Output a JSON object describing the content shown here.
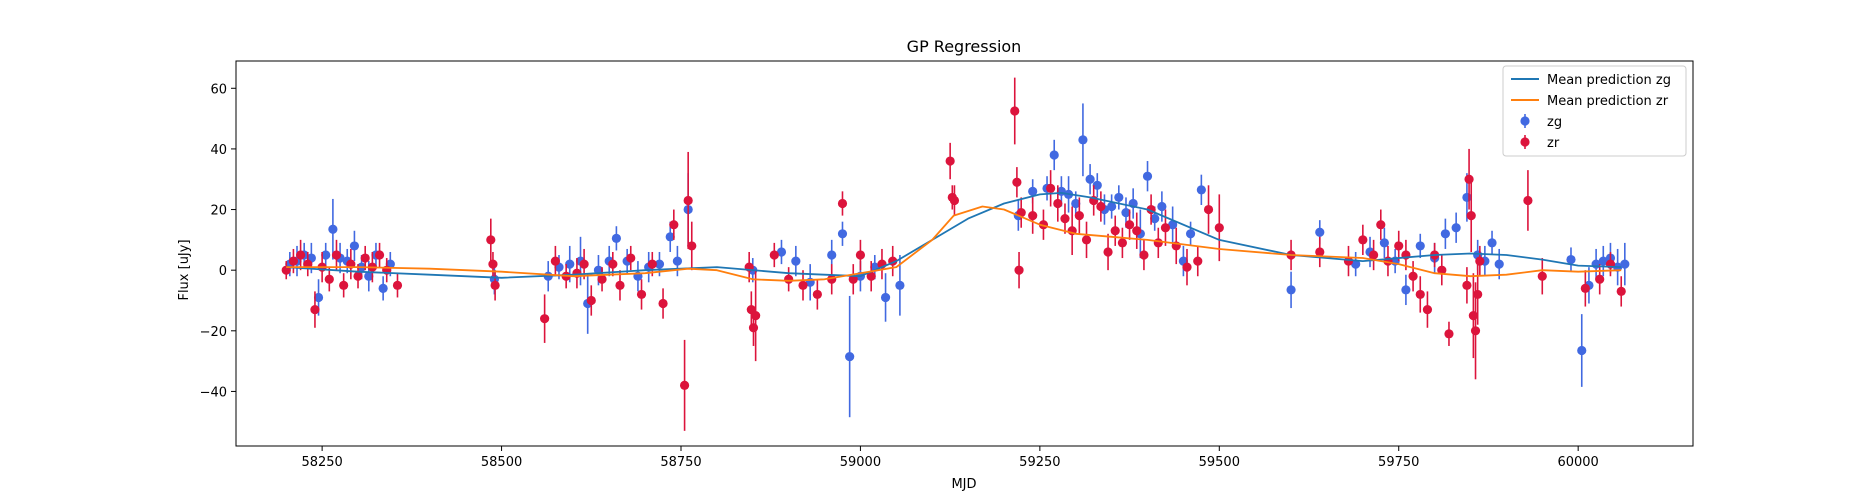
{
  "chart_data": {
    "type": "scatter",
    "title": "GP Regression",
    "xlabel": "MJD",
    "ylabel": "Flux [uJy]",
    "xlim": [
      58130,
      60160
    ],
    "ylim": [
      -58,
      69
    ],
    "xticks": [
      58250,
      58500,
      58750,
      59000,
      59250,
      59500,
      59750,
      60000
    ],
    "yticks": [
      -40,
      -20,
      0,
      20,
      40,
      60
    ],
    "grid": false,
    "legend_position": "top-right",
    "series": [
      {
        "name": "Mean prediction zg",
        "kind": "line",
        "color": "#1f77b4",
        "x": [
          58200,
          58300,
          58400,
          58500,
          58600,
          58700,
          58800,
          58900,
          59000,
          59050,
          59100,
          59150,
          59200,
          59250,
          59280,
          59320,
          59400,
          59500,
          59600,
          59700,
          59800,
          59850,
          59900,
          59950,
          60000,
          60060
        ],
        "y": [
          1,
          -0.5,
          -1.5,
          -2.5,
          -1.5,
          0,
          1,
          -1,
          -2,
          3,
          10,
          17,
          22,
          25,
          25.5,
          24,
          20,
          10,
          5,
          3,
          5,
          5.5,
          5,
          3.5,
          1.5,
          1
        ]
      },
      {
        "name": "Mean prediction zr",
        "kind": "line",
        "color": "#ff7f0e",
        "x": [
          58200,
          58300,
          58400,
          58500,
          58600,
          58700,
          58760,
          58800,
          58850,
          58900,
          58950,
          59000,
          59050,
          59100,
          59130,
          59170,
          59200,
          59250,
          59300,
          59350,
          59400,
          59500,
          59600,
          59700,
          59750,
          59800,
          59850,
          59900,
          59950,
          60000,
          60060
        ],
        "y": [
          1,
          1,
          0.5,
          -0.5,
          -2,
          -1,
          0.5,
          0,
          -3,
          -3.5,
          -3,
          -1,
          1,
          10,
          18,
          21,
          20,
          15,
          12,
          11,
          10,
          7,
          5,
          4,
          2,
          -1,
          -2,
          -1.5,
          0,
          -0.5,
          0
        ]
      },
      {
        "name": "zg",
        "kind": "errorbar",
        "color": "#4169e1",
        "x": [
          58205,
          58215,
          58225,
          58235,
          58245,
          58255,
          58265,
          58275,
          58285,
          58295,
          58305,
          58315,
          58325,
          58335,
          58345,
          58490,
          58565,
          58580,
          58595,
          58610,
          58620,
          58635,
          58650,
          58660,
          58675,
          58690,
          58705,
          58720,
          58735,
          58745,
          58760,
          58850,
          58890,
          58910,
          58930,
          58960,
          58975,
          58985,
          59000,
          59020,
          59035,
          59055,
          59220,
          59240,
          59260,
          59270,
          59280,
          59290,
          59300,
          59310,
          59320,
          59330,
          59340,
          59350,
          59360,
          59370,
          59380,
          59390,
          59400,
          59410,
          59420,
          59435,
          59450,
          59460,
          59475,
          59600,
          59640,
          59690,
          59710,
          59730,
          59745,
          59760,
          59780,
          59800,
          59815,
          59830,
          59845,
          59860,
          59870,
          59880,
          59890,
          59990,
          60005,
          60015,
          60025,
          60035,
          60045,
          60055,
          60065
        ],
        "y": [
          2,
          3,
          5,
          4,
          -9,
          5,
          13.5,
          4,
          3,
          8,
          1,
          -2,
          5,
          -6,
          2,
          -3,
          -2,
          1,
          2,
          3,
          -11,
          0,
          3,
          10.5,
          3,
          -2,
          1,
          2,
          11,
          3,
          20,
          0,
          6,
          3,
          -4,
          5,
          12,
          -28.5,
          -2,
          1,
          -9,
          -5,
          18,
          26,
          27,
          38,
          26,
          25,
          22,
          43,
          30,
          28,
          20,
          21,
          24,
          19,
          22,
          12,
          31,
          17,
          21,
          15,
          3,
          12,
          26.5,
          -6.5,
          12.5,
          2,
          6,
          9,
          3,
          -6.5,
          8,
          4,
          12,
          14,
          24,
          5,
          3,
          9,
          2,
          3.5,
          -26.5,
          -5,
          2,
          3,
          4,
          1,
          2
        ],
        "err": [
          4,
          5,
          4,
          5,
          6,
          4,
          10,
          5,
          4,
          5,
          4,
          5,
          4,
          4,
          4,
          5,
          5,
          4,
          6,
          8,
          10,
          5,
          5,
          4,
          4,
          5,
          5,
          4,
          5,
          5,
          12,
          4,
          4,
          5,
          6,
          5,
          4,
          20,
          5,
          4,
          8,
          10,
          5,
          4,
          4,
          5,
          5,
          6,
          4,
          12,
          5,
          4,
          5,
          4,
          4,
          5,
          5,
          8,
          5,
          4,
          5,
          6,
          5,
          4,
          5,
          6,
          4,
          4,
          5,
          5,
          4,
          5,
          4,
          5,
          5,
          5,
          8,
          5,
          5,
          4,
          5,
          4,
          12,
          6,
          5,
          5,
          5,
          6,
          7
        ]
      },
      {
        "name": "zr",
        "kind": "errorbar",
        "color": "#dc143c",
        "x": [
          58200,
          58210,
          58220,
          58230,
          58240,
          58250,
          58260,
          58270,
          58280,
          58290,
          58300,
          58310,
          58320,
          58330,
          58340,
          58355,
          58485,
          58488,
          58491,
          58560,
          58575,
          58590,
          58605,
          58615,
          58625,
          58640,
          58655,
          58665,
          58680,
          58695,
          58710,
          58725,
          58740,
          58755,
          58760,
          58765,
          58845,
          58848,
          58851,
          58854,
          58880,
          58900,
          58920,
          58940,
          58960,
          58975,
          58990,
          59000,
          59015,
          59030,
          59045,
          59125,
          59128,
          59131,
          59215,
          59218,
          59221,
          59224,
          59240,
          59255,
          59265,
          59275,
          59285,
          59295,
          59305,
          59315,
          59325,
          59335,
          59345,
          59355,
          59365,
          59375,
          59385,
          59395,
          59405,
          59415,
          59425,
          59440,
          59455,
          59470,
          59485,
          59500,
          59600,
          59640,
          59680,
          59700,
          59715,
          59725,
          59735,
          59750,
          59760,
          59770,
          59780,
          59790,
          59800,
          59810,
          59820,
          59845,
          59848,
          59851,
          59854,
          59857,
          59860,
          59863,
          59930,
          59950,
          60010,
          60030,
          60045,
          60060
        ],
        "y": [
          0,
          3,
          5,
          2,
          -13,
          1,
          -3,
          5,
          -5,
          2,
          -2,
          4,
          1,
          5,
          0,
          -5,
          10,
          2,
          -5,
          -16,
          3,
          -2,
          -1,
          2,
          -10,
          -3,
          2,
          -5,
          4,
          -8,
          2,
          -11,
          15,
          -38,
          23,
          8,
          1,
          -13,
          -19,
          -15,
          5,
          -3,
          -5,
          -8,
          -3,
          22,
          -3,
          5,
          -2,
          2,
          3,
          36,
          24,
          23,
          52.5,
          29,
          0,
          19,
          18,
          15,
          27,
          22,
          17,
          13,
          18,
          10,
          23,
          21,
          6,
          13,
          9,
          15,
          13,
          5,
          20,
          9,
          14,
          8,
          1,
          3,
          20,
          14,
          5,
          6,
          3,
          10,
          5,
          15,
          3,
          8,
          5,
          -2,
          -8,
          -13,
          5,
          0,
          -21,
          -5,
          30,
          18,
          -15,
          -20,
          -8,
          3,
          23,
          -2,
          -6,
          -3,
          2,
          -7
        ],
        "err": [
          3,
          4,
          5,
          4,
          6,
          5,
          4,
          5,
          4,
          5,
          4,
          4,
          5,
          4,
          4,
          4,
          7,
          4,
          5,
          8,
          5,
          4,
          5,
          5,
          5,
          4,
          4,
          5,
          4,
          5,
          4,
          5,
          5,
          15,
          16,
          8,
          5,
          6,
          6,
          15,
          4,
          4,
          5,
          5,
          5,
          4,
          5,
          5,
          5,
          5,
          5,
          6,
          4,
          5,
          11,
          5,
          6,
          5,
          6,
          5,
          6,
          6,
          5,
          8,
          6,
          6,
          5,
          5,
          6,
          5,
          5,
          5,
          6,
          5,
          5,
          5,
          6,
          6,
          6,
          5,
          8,
          11,
          5,
          5,
          5,
          5,
          5,
          5,
          5,
          5,
          5,
          5,
          6,
          6,
          4,
          5,
          4,
          6,
          10,
          12,
          14,
          16,
          10,
          5,
          10,
          6,
          6,
          5,
          4,
          5
        ]
      }
    ]
  }
}
